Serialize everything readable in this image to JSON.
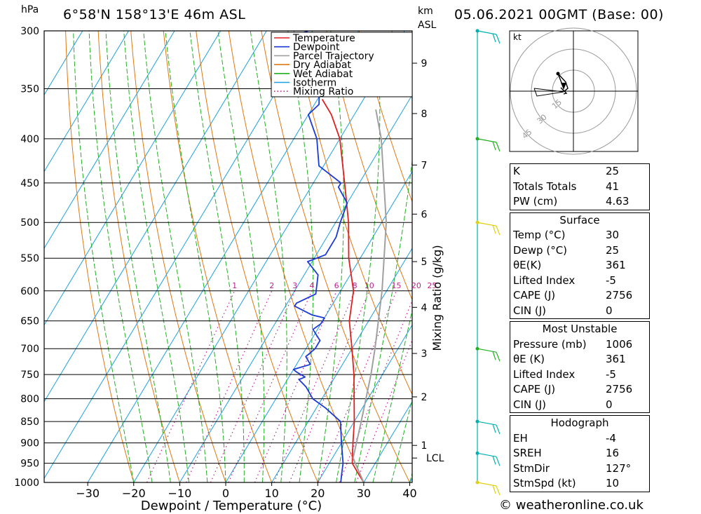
{
  "header": {
    "title": "6°58'N 158°13'E 46m ASL",
    "date": "05.06.2021 00GMT (Base: 00)",
    "pressure_unit": "hPa",
    "km_label_1": "km",
    "km_label_2": "ASL"
  },
  "footer": {
    "credit": "© weatheronline.co.uk"
  },
  "chart_data": {
    "type": "line",
    "subtype": "skew-t log-p",
    "xlabel": "Dewpoint / Temperature (°C)",
    "ylabel": "hPa",
    "y2label": "Mixing Ratio (g/kg)",
    "xlim": [
      -40,
      40
    ],
    "ylim": [
      1000,
      300
    ],
    "pressure_ticks": [
      300,
      350,
      400,
      450,
      500,
      550,
      600,
      650,
      700,
      750,
      800,
      850,
      900,
      950,
      1000
    ],
    "temperature_ticks": [
      -30,
      -20,
      -10,
      0,
      10,
      20,
      30,
      40
    ],
    "height_km_ticks": [
      {
        "label": "1",
        "p": 906
      },
      {
        "label": "2",
        "p": 796
      },
      {
        "label": "3",
        "p": 709
      },
      {
        "label": "4",
        "p": 627
      },
      {
        "label": "5",
        "p": 555
      },
      {
        "label": "6",
        "p": 489
      },
      {
        "label": "7",
        "p": 429
      },
      {
        "label": "8",
        "p": 374
      },
      {
        "label": "9",
        "p": 327
      }
    ],
    "lcl": {
      "label": "LCL",
      "p": 937
    },
    "mixing_ratio_labels": [
      "1",
      "2",
      "3",
      "4",
      "6",
      "8",
      "10",
      "15",
      "20",
      "25"
    ],
    "legend": {
      "position": "top-right",
      "entries": [
        {
          "name": "Temperature",
          "color": "#e02020",
          "style": "solid"
        },
        {
          "name": "Dewpoint",
          "color": "#1a3ad8",
          "style": "solid"
        },
        {
          "name": "Parcel Trajectory",
          "color": "#a0a0a0",
          "style": "solid"
        },
        {
          "name": "Dry Adiabat",
          "color": "#e07810",
          "style": "solid"
        },
        {
          "name": "Wet Adiabat",
          "color": "#20b020",
          "style": "solid"
        },
        {
          "name": "Isotherm",
          "color": "#1aa0e0",
          "style": "solid"
        },
        {
          "name": "Mixing Ratio",
          "color": "#c02090",
          "style": "dotted"
        }
      ]
    },
    "series": [
      {
        "name": "Temperature",
        "points": [
          [
            1000,
            30
          ],
          [
            975,
            27.5
          ],
          [
            950,
            25
          ],
          [
            900,
            22.5
          ],
          [
            850,
            20
          ],
          [
            800,
            17
          ],
          [
            750,
            13.8
          ],
          [
            700,
            10
          ],
          [
            650,
            5.8
          ],
          [
            600,
            2.8
          ],
          [
            550,
            -2.5
          ],
          [
            500,
            -7.2
          ],
          [
            450,
            -13.2
          ],
          [
            400,
            -20
          ],
          [
            375,
            -25
          ],
          [
            360,
            -29
          ]
        ]
      },
      {
        "name": "Dewpoint",
        "points": [
          [
            1000,
            25
          ],
          [
            975,
            24
          ],
          [
            950,
            23
          ],
          [
            900,
            20
          ],
          [
            850,
            17
          ],
          [
            820,
            12
          ],
          [
            800,
            8
          ],
          [
            775,
            5
          ],
          [
            760,
            2.5
          ],
          [
            755,
            3.5
          ],
          [
            745,
            1
          ],
          [
            740,
            0
          ],
          [
            730,
            3
          ],
          [
            715,
            1
          ],
          [
            700,
            2
          ],
          [
            685,
            2
          ],
          [
            665,
            -1
          ],
          [
            655,
            0
          ],
          [
            645,
            0
          ],
          [
            640,
            -3
          ],
          [
            625,
            -8
          ],
          [
            620,
            -8
          ],
          [
            605,
            -5
          ],
          [
            575,
            -7
          ],
          [
            555,
            -11
          ],
          [
            545,
            -8
          ],
          [
            520,
            -8
          ],
          [
            500,
            -9
          ],
          [
            475,
            -10
          ],
          [
            455,
            -14
          ],
          [
            450,
            -14
          ],
          [
            430,
            -21
          ],
          [
            400,
            -25
          ],
          [
            375,
            -30
          ],
          [
            365,
            -29
          ],
          [
            350,
            -31
          ],
          [
            335,
            -31
          ],
          [
            325,
            -36
          ],
          [
            315,
            -40
          ],
          [
            308,
            -45
          ],
          [
            300,
            -41
          ]
        ]
      },
      {
        "name": "Parcel Trajectory",
        "points": [
          [
            1000,
            30
          ],
          [
            937,
            24.5
          ],
          [
            850,
            21.5
          ],
          [
            750,
            17.5
          ],
          [
            700,
            15
          ],
          [
            600,
            9
          ],
          [
            500,
            1
          ],
          [
            400,
            -11
          ],
          [
            370,
            -16
          ]
        ]
      }
    ]
  },
  "wind_profile": {
    "levels_hpa": [
      300,
      400,
      500,
      700,
      850,
      925,
      1000
    ],
    "colors": [
      "#00b0b0",
      "#20b020",
      "#e0d010",
      "#20b020",
      "#00b0b0",
      "#00b0b0",
      "#e0d010"
    ]
  },
  "hodograph": {
    "unit": "kt",
    "ring_labels": [
      "15",
      "30",
      "45"
    ]
  },
  "indices": {
    "k_label": "K",
    "k_value": "25",
    "tt_label": "Totals Totals",
    "tt_value": "41",
    "pw_label": "PW (cm)",
    "pw_value": "4.63",
    "surface": {
      "header": "Surface",
      "temp_label": "Temp (°C)",
      "temp_value": "30",
      "dewp_label": "Dewp (°C)",
      "dewp_value": "25",
      "theta_label": "θE(K)",
      "theta_value": "361",
      "li_label": "Lifted Index",
      "li_value": "-5",
      "cape_label": "CAPE (J)",
      "cape_value": "2756",
      "cin_label": "CIN (J)",
      "cin_value": "0"
    },
    "most_unstable": {
      "header": "Most Unstable",
      "pressure_label": "Pressure (mb)",
      "pressure_value": "1006",
      "theta_label": "θE (K)",
      "theta_value": "361",
      "li_label": "Lifted Index",
      "li_value": "-5",
      "cape_label": "CAPE (J)",
      "cape_value": "2756",
      "cin_label": "CIN (J)",
      "cin_value": "0"
    },
    "hodograph": {
      "header": "Hodograph",
      "eh_label": "EH",
      "eh_value": "-4",
      "sreh_label": "SREH",
      "sreh_value": "16",
      "stmdir_label": "StmDir",
      "stmdir_value": "127°",
      "stmspd_label": "StmSpd (kt)",
      "stmspd_value": "10"
    }
  }
}
